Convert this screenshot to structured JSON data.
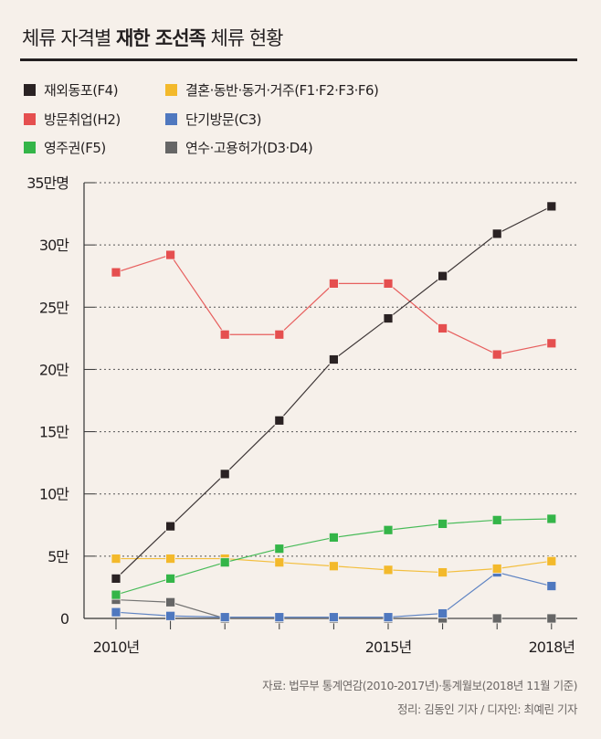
{
  "title": {
    "pre": "체류 자격별 ",
    "bold": "재한 조선족",
    "post": " 체류 현황"
  },
  "chart_data": {
    "type": "line",
    "title": "체류 자격별 재한 조선족 체류 현황",
    "x": [
      2010,
      2011,
      2012,
      2013,
      2014,
      2015,
      2016,
      2017,
      2018
    ],
    "xtick_labels": [
      {
        "year": 2010,
        "label": "2010년"
      },
      {
        "year": 2015,
        "label": "2015년"
      },
      {
        "year": 2018,
        "label": "2018년"
      }
    ],
    "ylim": [
      0,
      35
    ],
    "yunit": "만명",
    "ytick_labels": [
      {
        "value": 0,
        "label": "0"
      },
      {
        "value": 5,
        "label": "5만"
      },
      {
        "value": 10,
        "label": "10만"
      },
      {
        "value": 15,
        "label": "15만"
      },
      {
        "value": 20,
        "label": "20만"
      },
      {
        "value": 25,
        "label": "25만"
      },
      {
        "value": 30,
        "label": "30만"
      },
      {
        "value": 35,
        "label": "35만명"
      }
    ],
    "grid": "horizontal-dotted",
    "legend_position": "top-left",
    "series": [
      {
        "name": "재외동포(F4)",
        "color": "#2a2223",
        "values": [
          3.2,
          7.4,
          11.6,
          15.9,
          20.8,
          24.1,
          27.5,
          30.9,
          33.1
        ]
      },
      {
        "name": "결혼·동반·동거·거주(F1·F2·F3·F6)",
        "color": "#f3b92b",
        "values": [
          4.8,
          4.8,
          4.8,
          4.5,
          4.2,
          3.9,
          3.7,
          4.0,
          4.6
        ]
      },
      {
        "name": "방문취업(H2)",
        "color": "#e54f4f",
        "values": [
          27.8,
          29.2,
          22.8,
          22.8,
          26.9,
          26.9,
          23.3,
          21.2,
          22.1
        ]
      },
      {
        "name": "단기방문(C3)",
        "color": "#4f78bf",
        "values": [
          0.5,
          0.2,
          0.1,
          0.1,
          0.1,
          0.1,
          0.4,
          3.7,
          2.6
        ]
      },
      {
        "name": "영주권(F5)",
        "color": "#34b548",
        "values": [
          1.9,
          3.2,
          4.5,
          5.6,
          6.5,
          7.1,
          7.6,
          7.9,
          8.0
        ]
      },
      {
        "name": "연수·고용허가(D3·D4)",
        "color": "#666666",
        "values": [
          1.5,
          1.3,
          0,
          0,
          0,
          0,
          0,
          0,
          0
        ]
      }
    ]
  },
  "source": {
    "line1": "자료: 법무부 통계연감(2010-2017년)·통계월보(2018년 11월 기준)",
    "line2": "정리: 김동인 기자 / 디자인: 최예린 기자"
  }
}
